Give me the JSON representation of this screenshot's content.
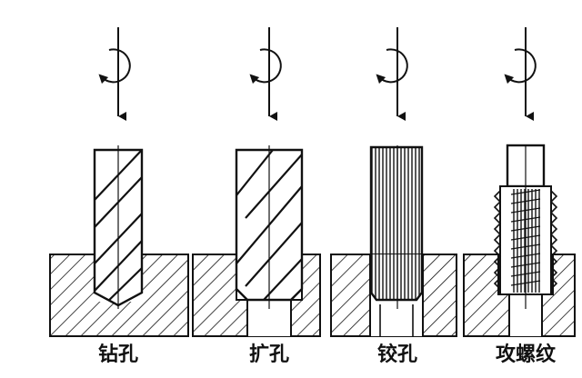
{
  "operations": [
    {
      "key": "drilling",
      "label": "钻孔"
    },
    {
      "key": "enlarging",
      "label": "扩孔"
    },
    {
      "key": "reaming",
      "label": "铰孔"
    },
    {
      "key": "tapping",
      "label": "攻螺纹"
    }
  ],
  "colors": {
    "ink": "#111111",
    "paper": "#ffffff"
  },
  "icons": [
    "rotation-arrow-icon",
    "feed-arrow-icon"
  ]
}
